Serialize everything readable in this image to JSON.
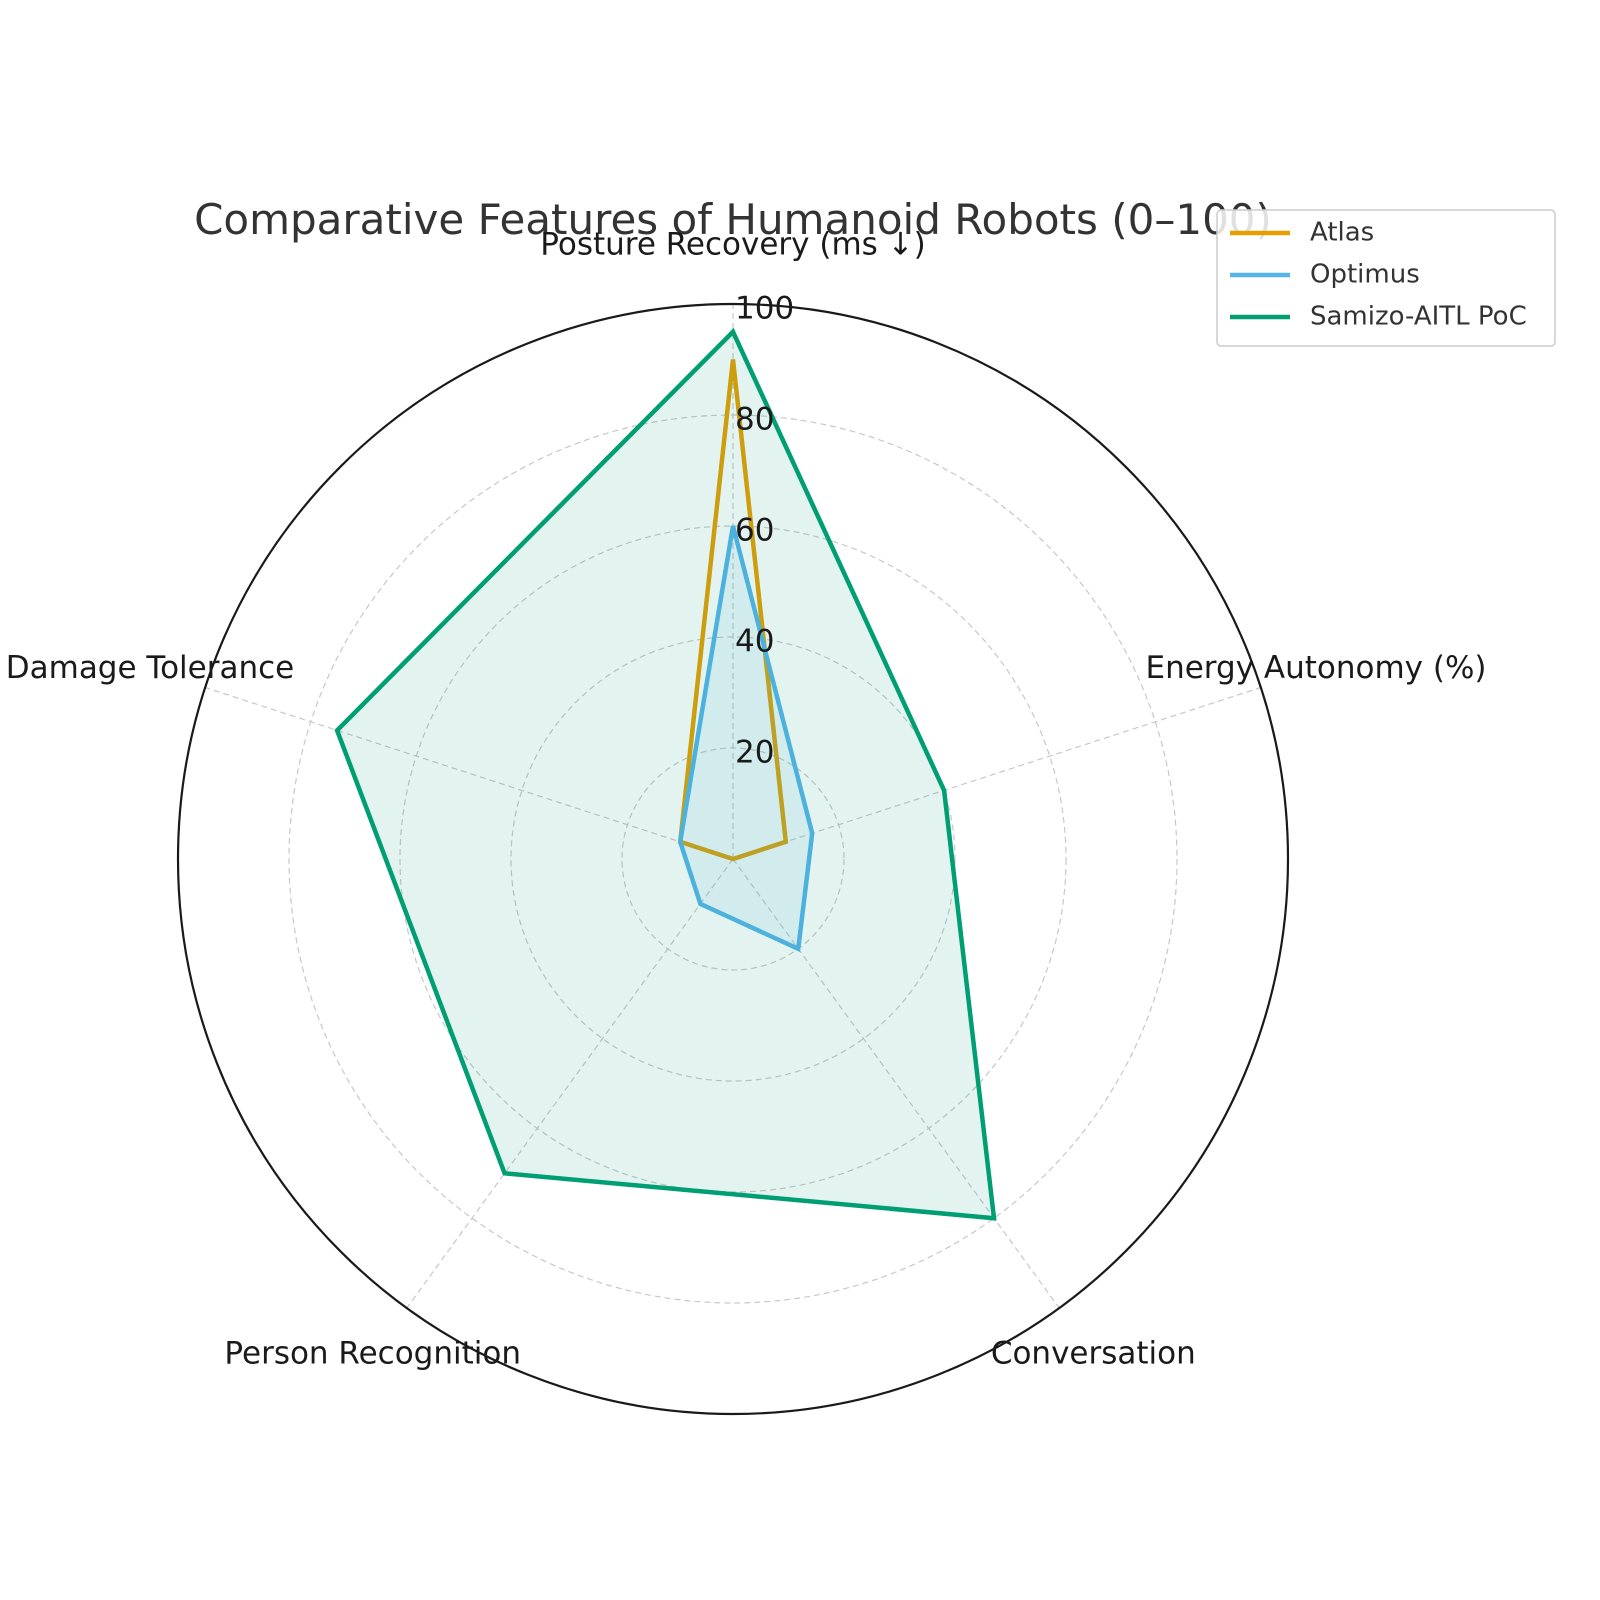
{
  "chart_data": {
    "type": "radar",
    "title": "Comparative Features of Humanoid Robots (0–100)",
    "axes": [
      "Posture Recovery (ms ↓)",
      "Energy Autonomy (%)",
      "Conversation",
      "Person Recognition",
      "Damage Tolerance"
    ],
    "rlim": [
      0,
      100
    ],
    "rticks": [
      20,
      40,
      60,
      80,
      100
    ],
    "grid": true,
    "legend_position": "top-right",
    "series": [
      {
        "name": "Atlas",
        "color": "#E69F00",
        "values": [
          90,
          10,
          0,
          0,
          10
        ],
        "fill": false
      },
      {
        "name": "Optimus",
        "color": "#56B4E9",
        "values": [
          60,
          15,
          20,
          10,
          10
        ],
        "fill": true
      },
      {
        "name": "Samizo-AITL PoC",
        "color": "#009E73",
        "values": [
          95,
          40,
          80,
          70,
          75
        ],
        "fill": true
      }
    ]
  }
}
